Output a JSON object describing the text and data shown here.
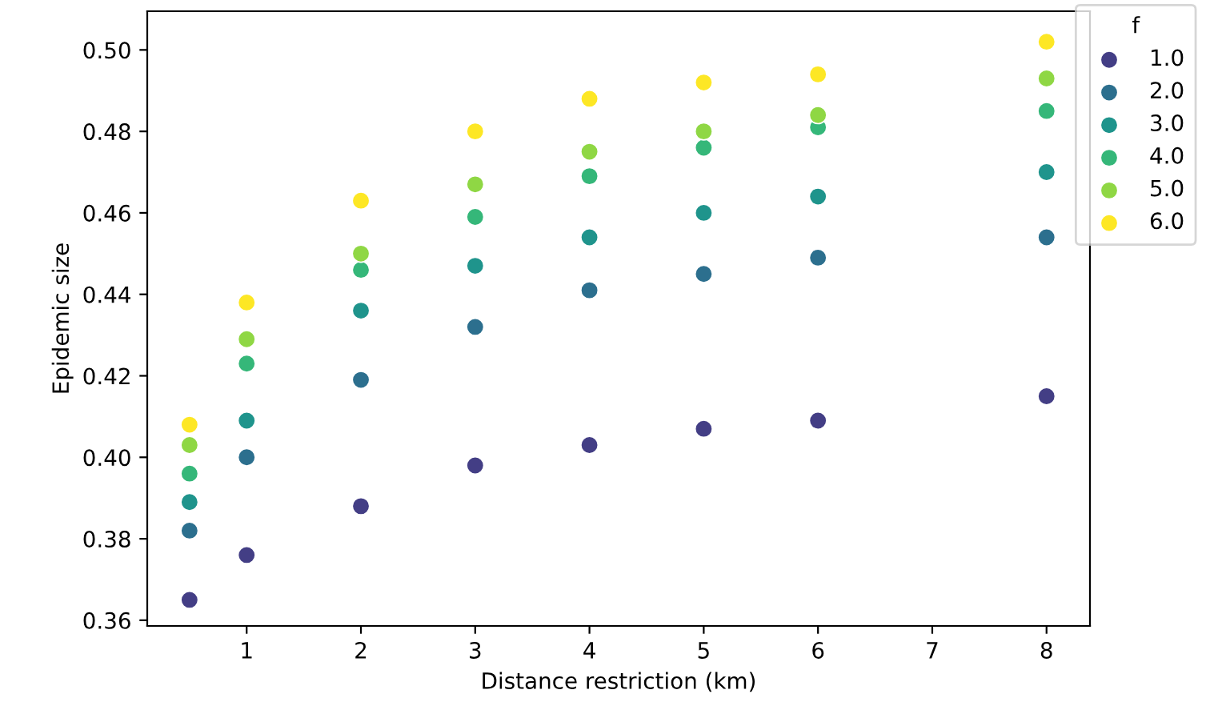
{
  "chart_data": {
    "type": "scatter",
    "xlabel": "Distance restriction (km)",
    "ylabel": "Epidemic size",
    "legend_title": "f",
    "legend": "top right",
    "marker": "circle",
    "grid": false,
    "x": [
      0.5,
      1,
      2,
      3,
      4,
      5,
      6,
      8
    ],
    "xlim": [
      0.13,
      8.38
    ],
    "xticks": [
      1,
      2,
      3,
      4,
      5,
      6,
      7,
      8
    ],
    "ylim": [
      0.3586,
      0.5095
    ],
    "yticks": [
      {
        "value": 0.36,
        "label": "0.36"
      },
      {
        "value": 0.38,
        "label": "0.38"
      },
      {
        "value": 0.4,
        "label": "0.40"
      },
      {
        "value": 0.42,
        "label": "0.42"
      },
      {
        "value": 0.44,
        "label": "0.44"
      },
      {
        "value": 0.46,
        "label": "0.46"
      },
      {
        "value": 0.48,
        "label": "0.48"
      },
      {
        "value": 0.5,
        "label": "0.50"
      }
    ],
    "series": [
      {
        "name": "1.0",
        "color": "#433e85",
        "values": [
          0.365,
          0.376,
          0.388,
          0.398,
          0.403,
          0.407,
          0.409,
          0.415
        ]
      },
      {
        "name": "2.0",
        "color": "#2c6f8e",
        "values": [
          0.382,
          0.4,
          0.419,
          0.432,
          0.441,
          0.445,
          0.449,
          0.454
        ]
      },
      {
        "name": "3.0",
        "color": "#1f948c",
        "values": [
          0.389,
          0.409,
          0.436,
          0.447,
          0.454,
          0.46,
          0.464,
          0.47
        ]
      },
      {
        "name": "4.0",
        "color": "#35b779",
        "values": [
          0.396,
          0.423,
          0.446,
          0.459,
          0.469,
          0.476,
          0.481,
          0.485
        ]
      },
      {
        "name": "5.0",
        "color": "#8fd744",
        "values": [
          0.403,
          0.429,
          0.45,
          0.467,
          0.475,
          0.48,
          0.484,
          0.493
        ]
      },
      {
        "name": "6.0",
        "color": "#fde725",
        "values": [
          0.408,
          0.438,
          0.463,
          0.48,
          0.488,
          0.492,
          0.494,
          0.502
        ]
      }
    ]
  }
}
